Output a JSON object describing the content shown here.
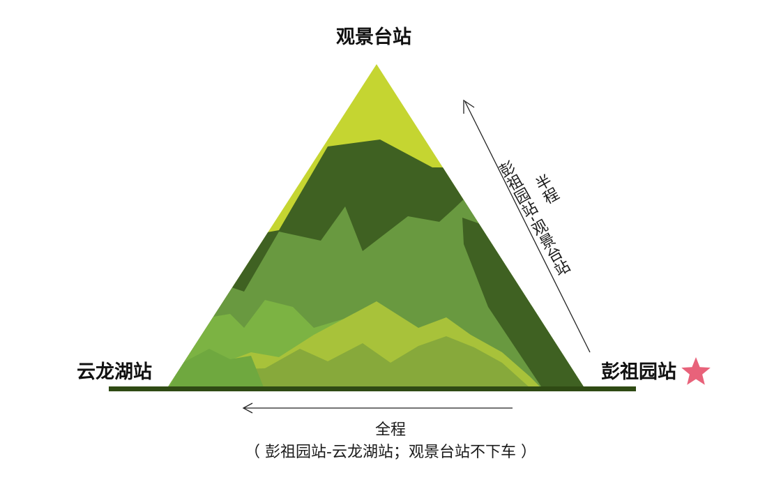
{
  "stations": {
    "summit": "观景台站",
    "west": "云龙湖站",
    "east": "彭祖园站"
  },
  "routes": {
    "half": {
      "title": "半程",
      "detail": "彭祖园站-观景台站"
    },
    "full": {
      "title": "全程",
      "detail": "（ 彭祖园站-云龙湖站；观景台站不下车 ）"
    }
  },
  "icons": {
    "start_marker": "star-icon"
  },
  "colors": {
    "star": "#e8627a",
    "ground": "#2f4a14",
    "peak_light": "#c5d531",
    "forest_dark": "#3f6122",
    "forest_mid": "#699940",
    "forest_bright": "#7cb343",
    "meadow": "#a8c23a"
  }
}
